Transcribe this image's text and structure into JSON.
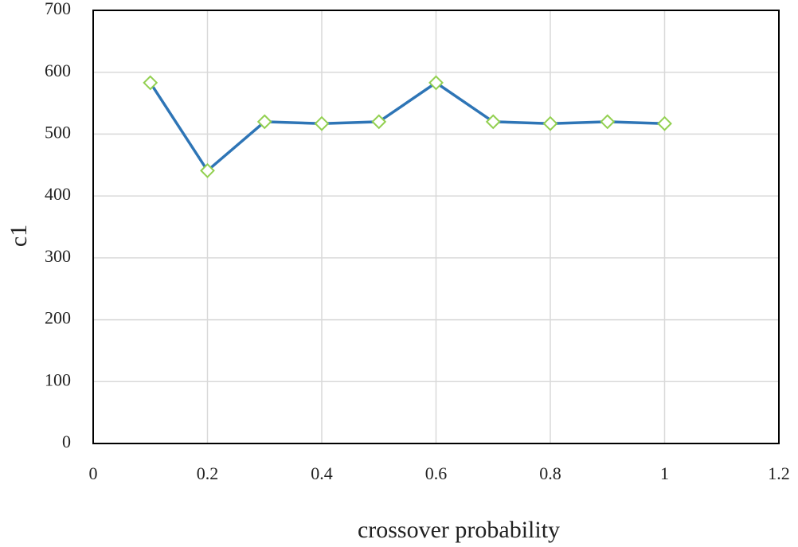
{
  "chart_data": {
    "type": "line",
    "x_label": "crossover probability",
    "y_label": "c1",
    "x": [
      0.1,
      0.2,
      0.3,
      0.4,
      0.5,
      0.6,
      0.7,
      0.8,
      0.9,
      1
    ],
    "series": [
      {
        "name": "c1",
        "color": "#2e75b6",
        "marker_color": "#92d050",
        "values": [
          583,
          441,
          520,
          517,
          520,
          583,
          520,
          517,
          520,
          517
        ]
      }
    ],
    "xlim": [
      0,
      1.2
    ],
    "xticks": [
      0,
      0.2,
      0.4,
      0.6,
      0.8,
      1,
      1.2
    ],
    "ylim": [
      0,
      700
    ],
    "yticks": [
      0,
      100,
      200,
      300,
      400,
      500,
      600,
      700
    ],
    "grid": true
  }
}
